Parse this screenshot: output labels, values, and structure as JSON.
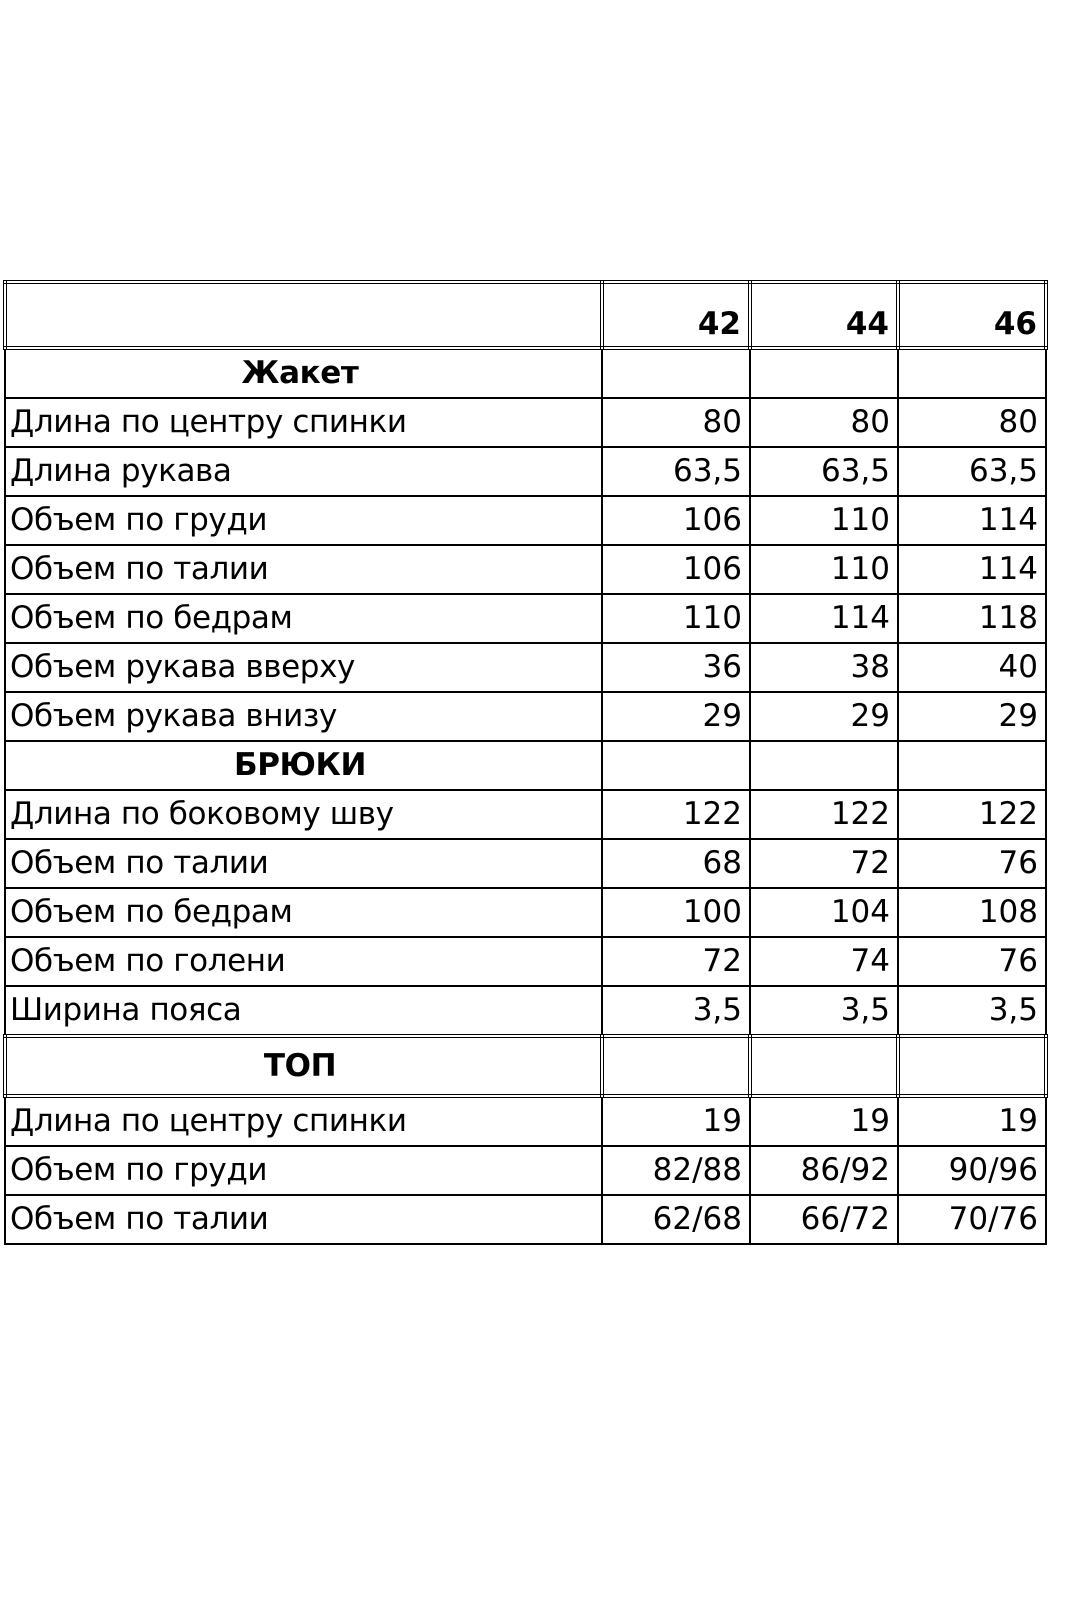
{
  "table": {
    "sizes": [
      "42",
      "44",
      "46"
    ],
    "sections": [
      {
        "title": "Жакет",
        "rows": [
          {
            "label": "Длина по центру спинки",
            "values": [
              "80",
              "80",
              "80"
            ]
          },
          {
            "label": "Длина рукава",
            "values": [
              "63,5",
              "63,5",
              "63,5"
            ]
          },
          {
            "label": "Объем по груди",
            "values": [
              "106",
              "110",
              "114"
            ]
          },
          {
            "label": "Объем по талии",
            "values": [
              "106",
              "110",
              "114"
            ]
          },
          {
            "label": "Объем по бедрам",
            "values": [
              "110",
              "114",
              "118"
            ]
          },
          {
            "label": "Объем рукава вверху",
            "values": [
              "36",
              "38",
              "40"
            ]
          },
          {
            "label": "Объем рукава внизу",
            "values": [
              "29",
              "29",
              "29"
            ]
          }
        ]
      },
      {
        "title": "БРЮКИ",
        "rows": [
          {
            "label": "Длина по боковому шву",
            "values": [
              "122",
              "122",
              "122"
            ]
          },
          {
            "label": "Объем по талии",
            "values": [
              "68",
              "72",
              "76"
            ]
          },
          {
            "label": "Объем по бедрам",
            "values": [
              "100",
              "104",
              "108"
            ]
          },
          {
            "label": "Объем по голени",
            "values": [
              "72",
              "74",
              "76"
            ]
          },
          {
            "label": "Ширина пояса",
            "values": [
              "3,5",
              "3,5",
              "3,5"
            ]
          }
        ]
      },
      {
        "title": "ТОП",
        "rows": [
          {
            "label": "Длина по центру спинки",
            "values": [
              "19",
              "19",
              "19"
            ]
          },
          {
            "label": "Объем по груди",
            "values": [
              "82/88",
              "86/92",
              "90/96"
            ]
          },
          {
            "label": "Объем по талии",
            "values": [
              "62/68",
              "66/72",
              "70/76"
            ]
          }
        ]
      }
    ]
  }
}
